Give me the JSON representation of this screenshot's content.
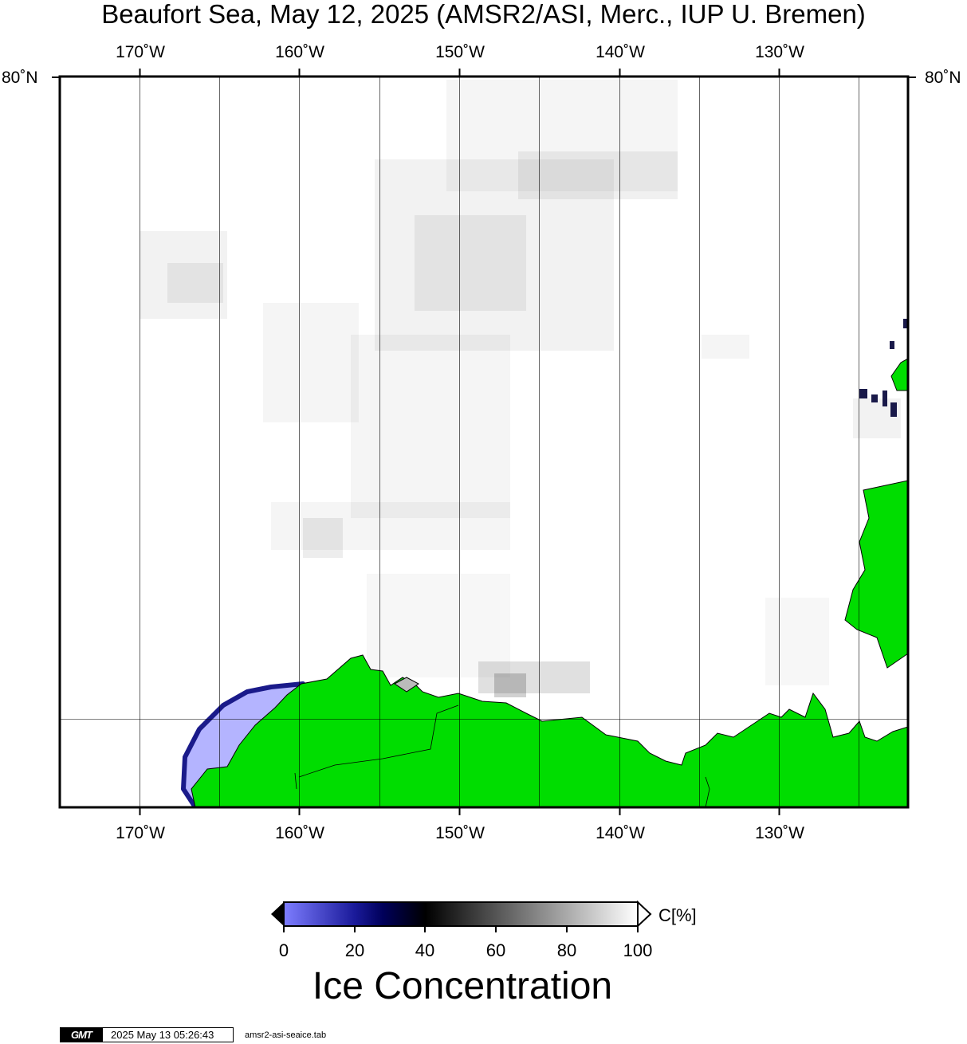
{
  "title": "Beaufort Sea, May 12, 2025 (AMSR2/ASI, Merc., IUP U. Bremen)",
  "map": {
    "region": "Beaufort Sea",
    "date": "May 12, 2025",
    "lon_range": [
      -175,
      -122
    ],
    "lat_top_label": "80˚N",
    "lon_labels": [
      {
        "lon": -170,
        "label": "170˚W"
      },
      {
        "lon": -160,
        "label": "160˚W"
      },
      {
        "lon": -150,
        "label": "150˚W"
      },
      {
        "lon": -140,
        "label": "140˚W"
      },
      {
        "lon": -130,
        "label": "130˚W"
      }
    ],
    "colors": {
      "land": "#00dd00",
      "frame": "#000000",
      "open_water": "#ffffff",
      "low_concentration": "#b4b4ff",
      "grid": "#000000"
    }
  },
  "colorbar": {
    "ticks": [
      "0",
      "20",
      "40",
      "60",
      "80",
      "100"
    ],
    "unit": "C[%]",
    "title": "Ice Concentration",
    "stops": [
      {
        "value": 0,
        "color": "#7d7dff"
      },
      {
        "value": 20,
        "color": "#1a1a9a"
      },
      {
        "value": 28,
        "color": "#00005a"
      },
      {
        "value": 40,
        "color": "#000000"
      },
      {
        "value": 60,
        "color": "#555555"
      },
      {
        "value": 100,
        "color": "#ffffff"
      }
    ]
  },
  "footer": {
    "logo": "GMT",
    "timestamp": "2025 May 13 05:26:43",
    "filename": "amsr2-asi-seaice.tab"
  }
}
